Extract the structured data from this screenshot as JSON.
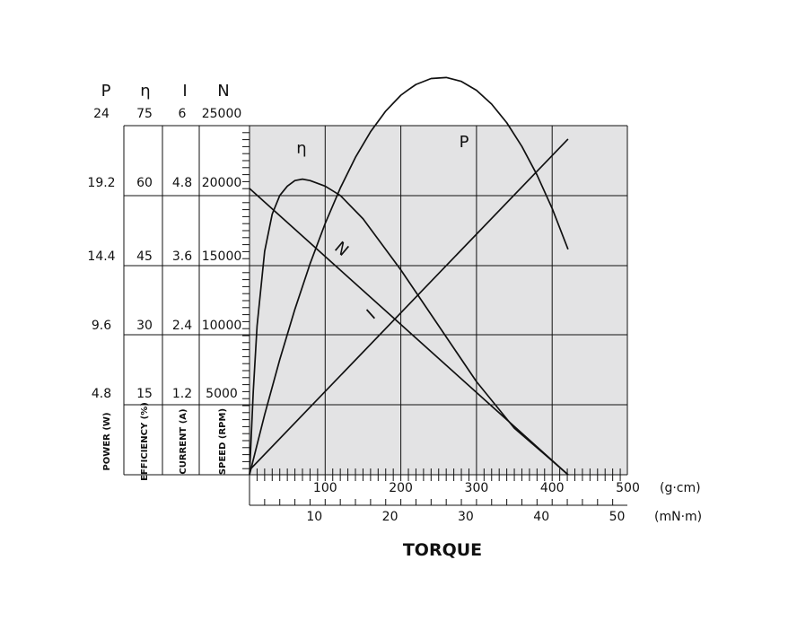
{
  "chart_data": {
    "type": "line",
    "xlabel": "TORQUE",
    "x_axes": [
      {
        "unit": "(g·cm)",
        "range": [
          0,
          500
        ],
        "ticks": [
          "100",
          "200",
          "300",
          "400",
          "500"
        ]
      },
      {
        "unit": "(mN·m)",
        "range": [
          0,
          50
        ],
        "ticks": [
          "10",
          "20",
          "30",
          "40",
          "50"
        ]
      }
    ],
    "y_axes": [
      {
        "symbol": "P",
        "label": "POWER (W)",
        "range": [
          0,
          24
        ],
        "ticks": [
          "4.8",
          "9.6",
          "14.4",
          "19.2",
          "24"
        ]
      },
      {
        "symbol": "η",
        "label": "EFFICIENCY (%)",
        "range": [
          0,
          75
        ],
        "ticks": [
          "15",
          "30",
          "45",
          "60",
          "75"
        ]
      },
      {
        "symbol": "I",
        "label": "CURRENT (A)",
        "range": [
          0,
          6
        ],
        "ticks": [
          "1.2",
          "2.4",
          "3.6",
          "4.8",
          "6"
        ]
      },
      {
        "symbol": "N",
        "label": "SPEED (RPM)",
        "range": [
          0,
          25000
        ],
        "ticks": [
          "5000",
          "10000",
          "15000",
          "20000",
          "25000"
        ]
      }
    ],
    "grid": true,
    "series": [
      {
        "name": "N",
        "axis": "N",
        "x": [
          0,
          421
        ],
        "values": [
          20500,
          0
        ]
      },
      {
        "name": "I",
        "axis": "I",
        "x": [
          0,
          421
        ],
        "values": [
          0.08,
          5.77
        ]
      },
      {
        "name": "P",
        "axis": "P",
        "x": [
          0,
          20,
          40,
          60,
          80,
          100,
          120,
          140,
          160,
          180,
          200,
          210,
          220,
          240,
          260,
          280,
          300,
          320,
          340,
          360,
          380,
          400,
          421
        ],
        "values": [
          0.0,
          4.13,
          7.92,
          11.38,
          14.5,
          17.27,
          19.71,
          21.82,
          23.58,
          25.0,
          26.09,
          26.47,
          26.83,
          27.24,
          27.31,
          27.04,
          26.43,
          25.48,
          24.2,
          22.57,
          20.61,
          18.31,
          15.5
        ]
      },
      {
        "name": "η",
        "axis": "η",
        "x": [
          0,
          5,
          10,
          20,
          30,
          40,
          50,
          60,
          70,
          80,
          100,
          120,
          150,
          200,
          250,
          300,
          350,
          400,
          421
        ],
        "values": [
          0,
          18,
          32,
          48,
          56,
          60,
          62,
          63.2,
          63.5,
          63.2,
          62,
          60,
          55,
          44,
          32,
          20,
          10,
          3,
          0
        ]
      }
    ]
  }
}
